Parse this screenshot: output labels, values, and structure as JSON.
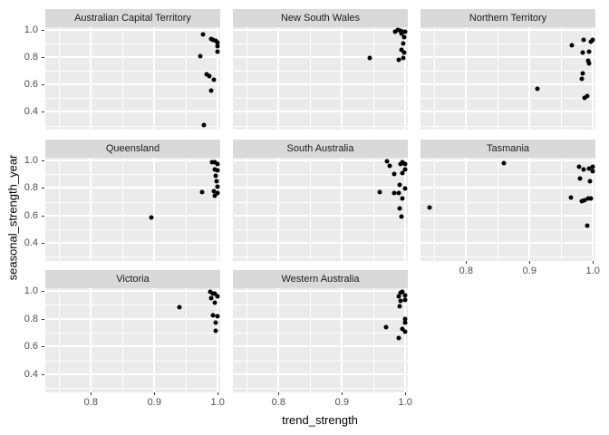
{
  "chart_data": {
    "type": "scatter",
    "title": "",
    "xlabel": "trend_strength",
    "ylabel": "seasonal_strength_year",
    "facet_variable": "State",
    "legend": "none",
    "grid": "on",
    "x_domain": [
      0.728,
      1.004
    ],
    "y_domain": [
      0.27,
      1.02
    ],
    "x_major_ticks": [
      0.8,
      0.9,
      1.0
    ],
    "x_minor_ticks": [
      0.75,
      0.85,
      0.95
    ],
    "y_major_ticks": [
      0.4,
      0.6,
      0.8,
      1.0
    ],
    "y_minor_ticks": [
      0.3,
      0.5,
      0.7,
      0.9
    ],
    "x_tick_labels": [
      "0.8",
      "0.9",
      "1.0"
    ],
    "y_tick_labels": [
      "1.0",
      "0.8",
      "0.6",
      "0.4"
    ],
    "facets": [
      {
        "label": "Australian Capital Territory",
        "points": [
          [
            0.977,
            0.967
          ],
          [
            0.99,
            0.932
          ],
          [
            0.993,
            0.928
          ],
          [
            0.997,
            0.918
          ],
          [
            1.0,
            0.91
          ],
          [
            0.999,
            0.883
          ],
          [
            1.0,
            0.839
          ],
          [
            0.972,
            0.805
          ],
          [
            0.982,
            0.677
          ],
          [
            0.987,
            0.659
          ],
          [
            0.994,
            0.633
          ],
          [
            0.99,
            0.555
          ],
          [
            0.978,
            0.301
          ]
        ]
      },
      {
        "label": "New South Wales",
        "points": [
          [
            0.984,
            0.99
          ],
          [
            0.988,
            1.0
          ],
          [
            0.992,
            0.995
          ],
          [
            0.996,
            0.99
          ],
          [
            0.999,
            0.985
          ],
          [
            0.994,
            0.975
          ],
          [
            0.998,
            0.945
          ],
          [
            0.997,
            0.9
          ],
          [
            0.994,
            0.855
          ],
          [
            0.998,
            0.835
          ],
          [
            0.997,
            0.795
          ],
          [
            0.989,
            0.78
          ],
          [
            0.944,
            0.795
          ]
        ]
      },
      {
        "label": "Northern Territory",
        "points": [
          [
            0.967,
            0.887
          ],
          [
            0.985,
            0.927
          ],
          [
            0.997,
            0.914
          ],
          [
            0.999,
            0.927
          ],
          [
            0.984,
            0.832
          ],
          [
            0.994,
            0.843
          ],
          [
            0.993,
            0.776
          ],
          [
            0.994,
            0.754
          ],
          [
            0.984,
            0.681
          ],
          [
            0.982,
            0.643
          ],
          [
            0.913,
            0.57
          ],
          [
            0.987,
            0.5
          ],
          [
            0.991,
            0.517
          ]
        ]
      },
      {
        "label": "Queensland",
        "points": [
          [
            0.991,
            0.99
          ],
          [
            0.995,
            0.985
          ],
          [
            1.0,
            0.973
          ],
          [
            0.995,
            0.937
          ],
          [
            1.0,
            0.925
          ],
          [
            0.997,
            0.892
          ],
          [
            0.998,
            0.846
          ],
          [
            1.0,
            0.812
          ],
          [
            0.994,
            0.778
          ],
          [
            0.999,
            0.767
          ],
          [
            0.995,
            0.744
          ],
          [
            0.976,
            0.771
          ],
          [
            0.895,
            0.586
          ]
        ]
      },
      {
        "label": "South Australia",
        "points": [
          [
            0.971,
            0.993
          ],
          [
            0.976,
            0.959
          ],
          [
            0.982,
            0.903
          ],
          [
            0.992,
            0.971
          ],
          [
            0.995,
            0.988
          ],
          [
            0.999,
            0.971
          ],
          [
            1.0,
            0.937
          ],
          [
            0.996,
            0.907
          ],
          [
            0.991,
            0.824
          ],
          [
            0.999,
            0.795
          ],
          [
            0.99,
            0.767
          ],
          [
            0.96,
            0.771
          ],
          [
            0.983,
            0.763
          ],
          [
            0.996,
            0.722
          ],
          [
            0.991,
            0.654
          ],
          [
            0.994,
            0.591
          ]
        ]
      },
      {
        "label": "Tasmania",
        "points": [
          [
            0.859,
            0.982
          ],
          [
            0.742,
            0.659
          ],
          [
            0.978,
            0.953
          ],
          [
            0.985,
            0.937
          ],
          [
            0.994,
            0.944
          ],
          [
            0.999,
            0.953
          ],
          [
            0.999,
            0.921
          ],
          [
            0.98,
            0.869
          ],
          [
            0.995,
            0.846
          ],
          [
            0.965,
            0.734
          ],
          [
            0.982,
            0.704
          ],
          [
            0.987,
            0.711
          ],
          [
            0.992,
            0.722
          ],
          [
            0.997,
            0.727
          ],
          [
            0.991,
            0.53
          ]
        ]
      },
      {
        "label": "Victoria",
        "points": [
          [
            0.988,
            0.993
          ],
          [
            0.992,
            0.978
          ],
          [
            0.995,
            0.982
          ],
          [
            1.0,
            0.96
          ],
          [
            0.99,
            0.949
          ],
          [
            0.995,
            0.915
          ],
          [
            0.939,
            0.882
          ],
          [
            0.993,
            0.827
          ],
          [
            0.999,
            0.82
          ],
          [
            0.997,
            0.771
          ],
          [
            0.997,
            0.715
          ]
        ]
      },
      {
        "label": "Western Australia",
        "points": [
          [
            0.993,
            0.99
          ],
          [
            0.995,
            0.993
          ],
          [
            0.999,
            0.971
          ],
          [
            0.989,
            0.96
          ],
          [
            0.999,
            0.938
          ],
          [
            0.992,
            0.931
          ],
          [
            0.991,
            0.893
          ],
          [
            0.999,
            0.798
          ],
          [
            0.999,
            0.771
          ],
          [
            0.969,
            0.742
          ],
          [
            0.995,
            0.727
          ],
          [
            0.999,
            0.709
          ],
          [
            0.989,
            0.66
          ]
        ]
      }
    ]
  },
  "colors": {
    "panel_bg": "#ebebeb",
    "strip_bg": "#d9d9d9",
    "grid": "#ffffff",
    "point": "#000000",
    "tick_label": "#4d4d4d",
    "axis_title": "#000000",
    "strip_text": "#1a1a1a",
    "background": "#ffffff"
  }
}
